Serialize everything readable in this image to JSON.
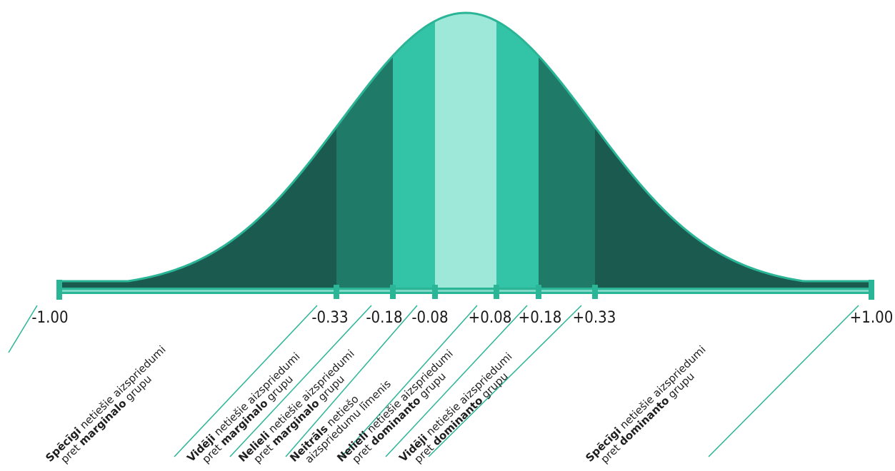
{
  "colors": {
    "strong": "#1b5a4f",
    "moderate": "#1f7a68",
    "slight": "#33c4a8",
    "neutral": "#9ee8d9",
    "outline": "#2bb597",
    "axis": "#2bb597"
  },
  "scale": {
    "ticks": [
      "-1.00",
      "-0.33",
      "-0.18",
      "-0.08",
      "+0.08",
      "+0.18",
      "+0.33",
      "+1.00"
    ],
    "tick_values": [
      -1.0,
      -0.33,
      -0.18,
      -0.08,
      0.08,
      0.18,
      0.33,
      1.0
    ]
  },
  "bands": [
    {
      "from": -1.0,
      "to": -0.33,
      "shade": "strong"
    },
    {
      "from": -0.33,
      "to": -0.18,
      "shade": "moderate"
    },
    {
      "from": -0.18,
      "to": -0.08,
      "shade": "slight"
    },
    {
      "from": -0.08,
      "to": 0.08,
      "shade": "neutral"
    },
    {
      "from": 0.08,
      "to": 0.18,
      "shade": "slight"
    },
    {
      "from": 0.18,
      "to": 0.33,
      "shade": "moderate"
    },
    {
      "from": 0.33,
      "to": 1.0,
      "shade": "strong"
    }
  ],
  "categories": [
    {
      "bold": "Spēcīgi",
      "rest1": " netiešie aizspriedumi",
      "line2a": "pret ",
      "bold2": "marginalo",
      "line2b": " grupu"
    },
    {
      "bold": "Vidēji",
      "rest1": " netiešie aizspriedumi",
      "line2a": "pret ",
      "bold2": "marginalo",
      "line2b": " grupu"
    },
    {
      "bold": "Nelieli",
      "rest1": " netiešie aizspriedumi",
      "line2a": "pret ",
      "bold2": "marginalo",
      "line2b": " grupu"
    },
    {
      "bold": "Neitrāls",
      "rest1": " netiešo",
      "line2a": "aizspriedumu līmenis",
      "bold2": "",
      "line2b": ""
    },
    {
      "bold": "Nelieli",
      "rest1": " netiešie aizspriedumi",
      "line2a": "pret ",
      "bold2": "dominanto",
      "line2b": " grupu"
    },
    {
      "bold": "Vidēji",
      "rest1": " netiešie aizspriedumi",
      "line2a": "pret ",
      "bold2": "dominanto",
      "line2b": " grupu"
    },
    {
      "bold": "Spēcīgi",
      "rest1": " netiešie aizspriedumi",
      "line2a": "pret ",
      "bold2": "dominanto",
      "line2b": " grupu"
    }
  ]
}
